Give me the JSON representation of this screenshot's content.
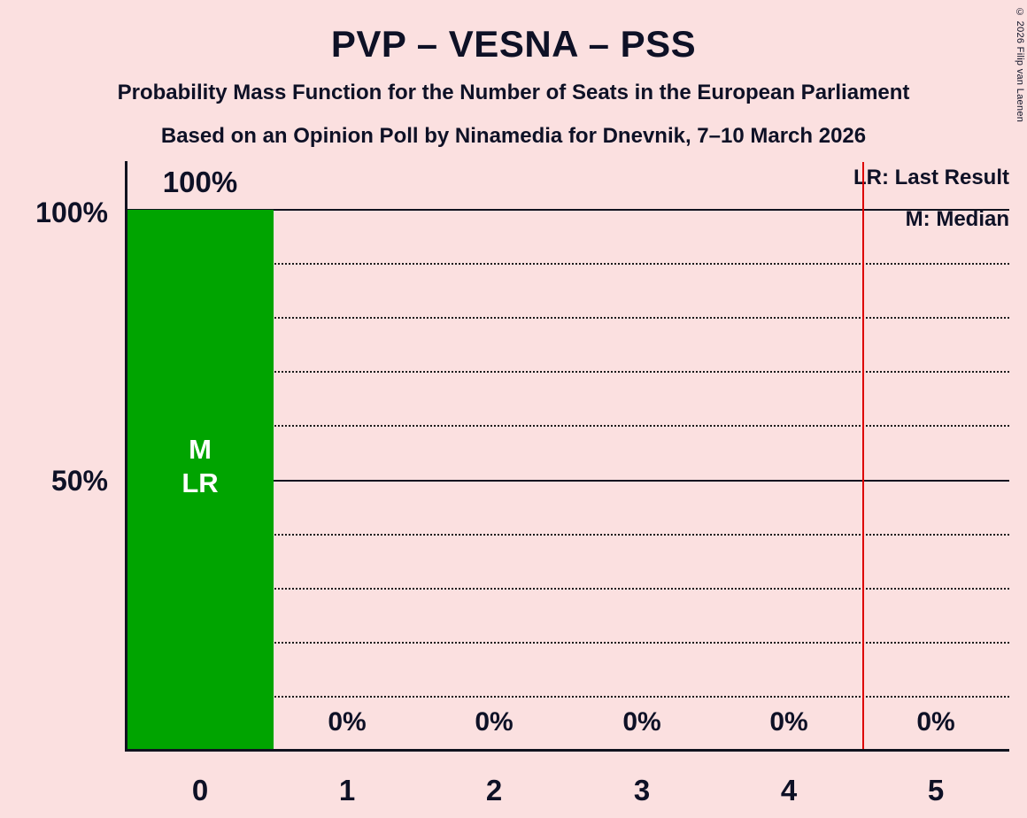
{
  "title": "PVP – VESNA – PSS",
  "subtitle": "Probability Mass Function for the Number of Seats in the European Parliament",
  "poll_info": "Based on an Opinion Poll by Ninamedia for Dnevnik, 7–10 March 2026",
  "copyright": "© 2026 Filip van Laenen",
  "legend": {
    "last_result": "LR: Last Result",
    "median": "M: Median"
  },
  "y_axis": {
    "labels": [
      "100%",
      "50%"
    ]
  },
  "bar_annotations": {
    "median": "M",
    "last_result": "LR"
  },
  "colors": {
    "background": "#fbe0e0",
    "bar": "#00a400",
    "text": "#0e1126",
    "threshold_line": "#dd0000",
    "bar_label": "#ffffff"
  },
  "chart_data": {
    "type": "bar",
    "title": "PVP – VESNA – PSS",
    "categories": [
      "0",
      "1",
      "2",
      "3",
      "4",
      "5"
    ],
    "values": [
      100,
      0,
      0,
      0,
      0,
      0
    ],
    "value_labels": [
      "100%",
      "0%",
      "0%",
      "0%",
      "0%",
      "0%"
    ],
    "ylim": [
      0,
      100
    ],
    "yticks": [
      100,
      50
    ],
    "ytick_labels": [
      "100%",
      "50%"
    ],
    "gridlines": {
      "solid": [
        100,
        50
      ],
      "dotted": [
        90,
        80,
        70,
        60,
        40,
        30,
        20,
        10
      ]
    },
    "median_category": "0",
    "last_result_category": "0",
    "threshold_line_x": 4.5,
    "legend_position": "top-right",
    "bar_color": "#00a400",
    "background_color": "#fbe0e0"
  }
}
